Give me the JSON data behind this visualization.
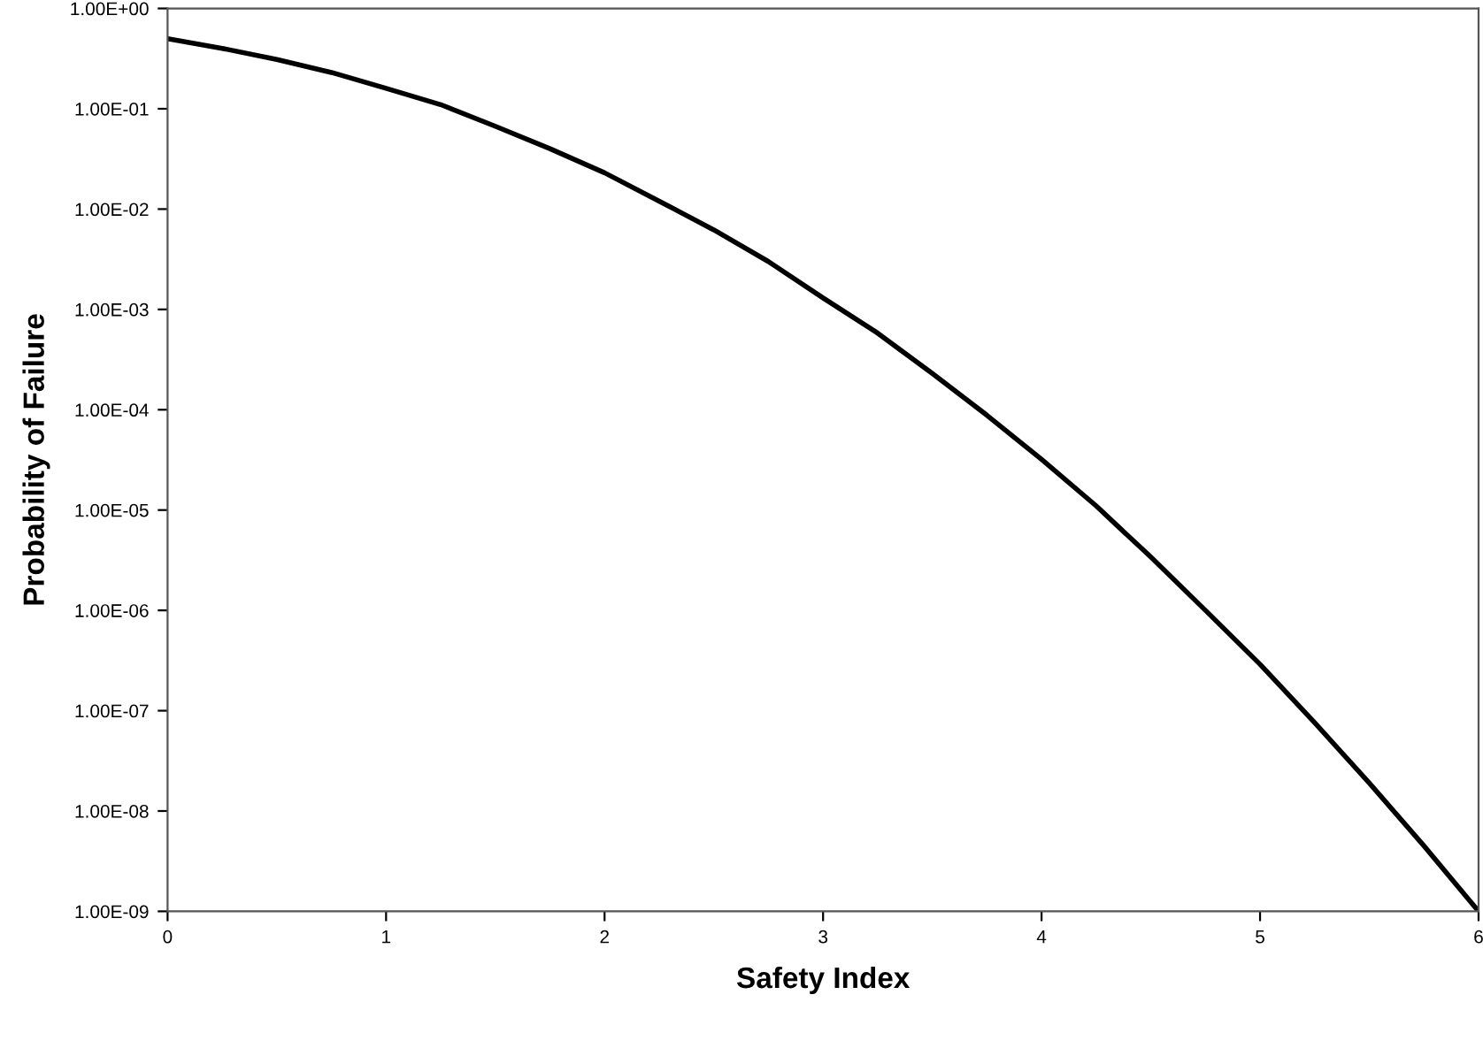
{
  "chart_data": {
    "type": "line",
    "xlabel": "Safety Index",
    "ylabel": "Probability of Failure",
    "x": [
      0,
      0.25,
      0.5,
      0.75,
      1,
      1.25,
      1.5,
      1.75,
      2,
      2.25,
      2.5,
      2.75,
      3,
      3.25,
      3.5,
      3.75,
      4,
      4.25,
      4.5,
      4.75,
      5,
      5.25,
      5.5,
      5.75,
      6
    ],
    "series": [
      {
        "color": "#000000",
        "values": [
          0.5,
          0.4,
          0.31,
          0.23,
          0.16,
          0.11,
          0.067,
          0.04,
          0.023,
          0.012,
          0.0062,
          0.003,
          0.0013,
          0.00058,
          0.00023,
          8.8e-05,
          3.2e-05,
          1.1e-05,
          3.4e-06,
          1e-06,
          2.9e-07,
          7.6e-08,
          1.9e-08,
          4.5e-09,
          1e-09
        ]
      }
    ],
    "log": "y",
    "xlim": [
      0,
      6
    ],
    "xticks": [
      0,
      1,
      2,
      3,
      4,
      5,
      6
    ],
    "ylim": [
      1e-09,
      1
    ],
    "yticks": [
      {
        "value": 1,
        "label": "1.00E+00"
      },
      {
        "value": 0.1,
        "label": "1.00E-01"
      },
      {
        "value": 0.01,
        "label": "1.00E-02"
      },
      {
        "value": 0.001,
        "label": "1.00E-03"
      },
      {
        "value": 0.0001,
        "label": "1.00E-04"
      },
      {
        "value": 1e-05,
        "label": "1.00E-05"
      },
      {
        "value": 1e-06,
        "label": "1.00E-06"
      },
      {
        "value": 1e-07,
        "label": "1.00E-07"
      },
      {
        "value": 1e-08,
        "label": "1.00E-08"
      },
      {
        "value": 1e-09,
        "label": "1.00E-09"
      }
    ],
    "grid": false,
    "legend": false,
    "marker": "none",
    "line_style": "solid"
  }
}
